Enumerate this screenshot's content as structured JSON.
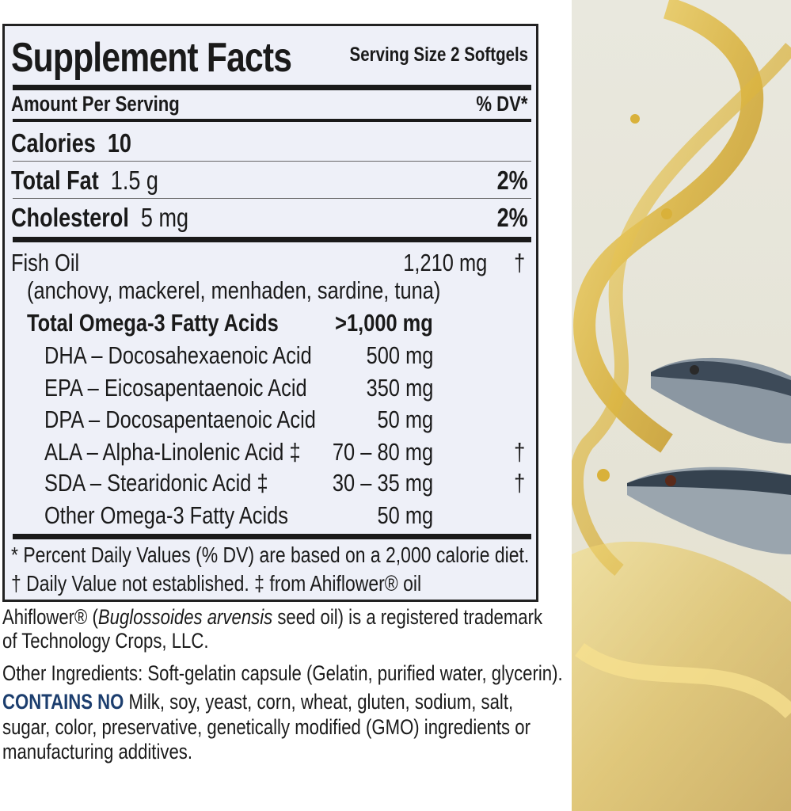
{
  "label": {
    "title": "Supplement Facts",
    "serving_size": "Serving Size 2 Softgels",
    "amount_per_serving": "Amount Per Serving",
    "dv_header": "% DV*",
    "calories": {
      "label": "Calories",
      "value": "10"
    },
    "total_fat": {
      "label": "Total Fat",
      "value": "1.5 g",
      "dv": "2%"
    },
    "cholesterol": {
      "label": "Cholesterol",
      "value": "5 mg",
      "dv": "2%"
    },
    "fish_oil": {
      "label": "Fish Oil",
      "value": "1,210 mg",
      "dv": "†",
      "sources": "(anchovy, mackerel, menhaden, sardine, tuna)"
    },
    "total_omega3": {
      "label": "Total Omega-3 Fatty Acids",
      "value": ">1,000 mg"
    },
    "omega3_items": [
      {
        "label": "DHA – Docosahexaenoic Acid",
        "value": "500 mg",
        "dv": ""
      },
      {
        "label": "EPA – Eicosapentaenoic Acid",
        "value": "350 mg",
        "dv": ""
      },
      {
        "label": "DPA – Docosapentaenoic Acid",
        "value": "50 mg",
        "dv": ""
      },
      {
        "label": "ALA – Alpha-Linolenic Acid ‡",
        "value": "70 – 80 mg",
        "dv": "†"
      },
      {
        "label": "SDA – Stearidonic Acid ‡",
        "value": "30 – 35 mg",
        "dv": "†"
      },
      {
        "label": "Other Omega-3 Fatty Acids",
        "value": "50 mg",
        "dv": ""
      }
    ],
    "footnote_1": "* Percent Daily Values (% DV) are based on a 2,000 calorie diet.",
    "footnote_2": "† Daily Value not established. ‡ from Ahiflower® oil"
  },
  "notes": {
    "trademark_pre": "Ahiflower® (",
    "trademark_italic": "Buglossoides arvensis",
    "trademark_post": " seed oil) is a registered trademark",
    "trademark_line2": "of Technology Crops, LLC.",
    "other_ingredients": "Other Ingredients: Soft-gelatin capsule (Gelatin, purified water, glycerin).",
    "contains_no_label": "CONTAINS NO",
    "contains_no_line1": " Milk, soy, yeast, corn, wheat, gluten, sodium, salt,",
    "contains_no_line2": "sugar, color, preservative, genetically modified (GMO) ingredients or",
    "contains_no_line3": "manufacturing additives."
  },
  "colors": {
    "label_bg": "#eef0f8",
    "contains_no": "#1c3e6e",
    "oil_gold": "#d9b13a"
  }
}
